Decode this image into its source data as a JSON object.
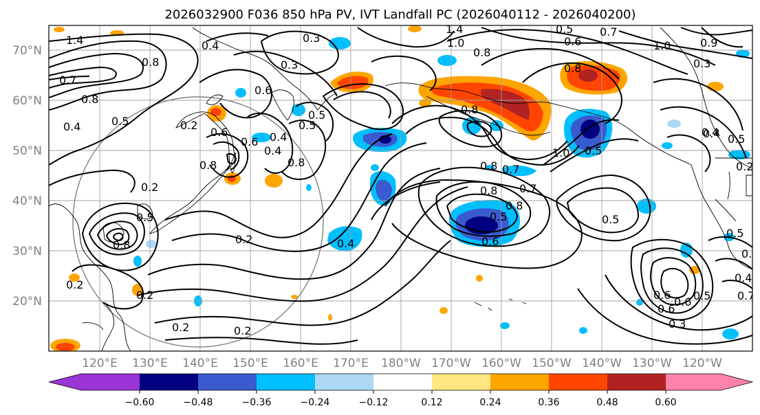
{
  "title": "2026032900 F036 850 hPa PV, IVT Landfall PC (2026040112 - 2026040200)",
  "lat_labels": [
    "70°N",
    "60°N",
    "50°N",
    "40°N",
    "30°N",
    "20°N"
  ],
  "lon_labels": [
    "120°E",
    "130°E",
    "140°E",
    "150°E",
    "160°E",
    "170°E",
    "180°W",
    "170°W",
    "160°W",
    "150°W",
    "140°W",
    "130°W",
    "120°W"
  ],
  "colorbar": {
    "colors": [
      "#9a35d6",
      "#000080",
      "#3a5bcf",
      "#00bfff",
      "#add8f6",
      "#ffffff",
      "#ffe680",
      "#ffa500",
      "#ff4500",
      "#b22222",
      "#ff82ab"
    ],
    "tick_labels": [
      "−0.60",
      "−0.48",
      "−0.36",
      "−0.24",
      "−0.12",
      "0.12",
      "0.24",
      "0.36",
      "0.48",
      "0.60"
    ]
  },
  "contour_labels": [
    "1.4",
    "0.3",
    "0.4",
    "0.8",
    "1.4",
    "1.0",
    "0.8",
    "0.5",
    "0.6",
    "0.7",
    "1.0",
    "0.9",
    "0.8",
    "0.4",
    "0.3",
    "0.6",
    "0.4",
    "0.5",
    "0.8",
    "0.2",
    "0.6",
    "0.5",
    "0.6",
    "0.4",
    "0.8",
    "0.4",
    "0.5",
    "0.8",
    "0.2",
    "0.5",
    "0.4",
    "0.8",
    "0.7",
    "0.8",
    "0.8",
    "0.7",
    "0.6",
    "0.5",
    "1.0",
    "0.5",
    "0.4",
    "0.5",
    "0.5",
    "0.8",
    "0.5",
    "0.7",
    "0.2",
    "0.8",
    "0.2",
    "0.2",
    "0.2",
    "0.2",
    "0.6",
    "0.6",
    "0.3",
    "0.6",
    "0.5",
    "0.4",
    "0.3",
    "0.7",
    "0.2",
    "0.7"
  ]
}
